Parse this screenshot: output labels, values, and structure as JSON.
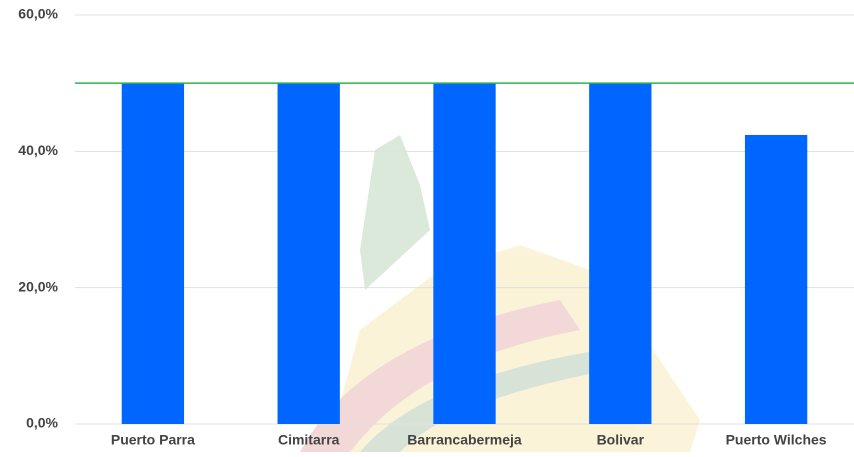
{
  "chart_data": {
    "type": "bar",
    "categories": [
      "Puerto Parra",
      "Cimitarra",
      "Barrancabermeja",
      "Bolivar",
      "Puerto Wilches"
    ],
    "values": [
      50,
      50,
      50,
      50,
      42.4
    ],
    "color": "#0066ff",
    "ylim": [
      0,
      60
    ],
    "yticks": [
      {
        "value": 0,
        "label": "0,0%"
      },
      {
        "value": 20,
        "label": "20,0%"
      },
      {
        "value": 40,
        "label": "40,0%"
      },
      {
        "value": 60,
        "label": "60,0%"
      }
    ],
    "grid": true,
    "reference_line": {
      "value": 50,
      "color": "#2db34a"
    }
  }
}
